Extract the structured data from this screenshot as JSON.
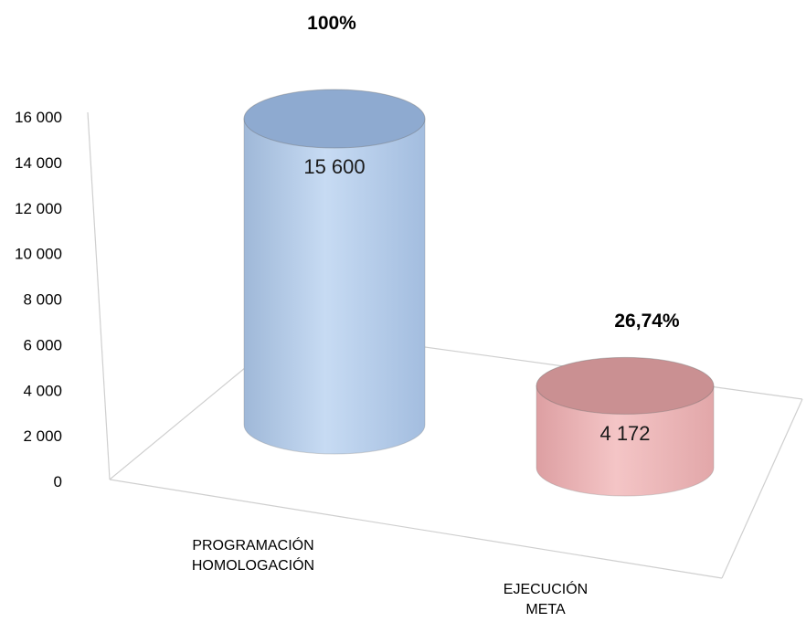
{
  "chart_data": {
    "type": "bar",
    "style": "3d-cylinder",
    "categories": [
      [
        "PROGRAMACIÓN",
        "HOMOLOGACIÓN"
      ],
      [
        "EJECUCIÓN",
        "META"
      ]
    ],
    "values": [
      15600,
      4172
    ],
    "value_labels": [
      "15 600",
      "4 172"
    ],
    "percent_labels": [
      "100%",
      "26,74%"
    ],
    "colors": [
      "#b9cfe9",
      "#eeb7b9"
    ],
    "ylim": [
      0,
      16000
    ],
    "yticks": [
      {
        "value": 0,
        "label": "0"
      },
      {
        "value": 2000,
        "label": "2 000"
      },
      {
        "value": 4000,
        "label": "4 000"
      },
      {
        "value": 6000,
        "label": "6 000"
      },
      {
        "value": 8000,
        "label": "8 000"
      },
      {
        "value": 10000,
        "label": "10 000"
      },
      {
        "value": 12000,
        "label": "12 000"
      },
      {
        "value": 14000,
        "label": "14 000"
      },
      {
        "value": 16000,
        "label": "16 000"
      }
    ],
    "title": "",
    "xlabel": "",
    "ylabel": "",
    "grid": false,
    "legend": "none"
  }
}
